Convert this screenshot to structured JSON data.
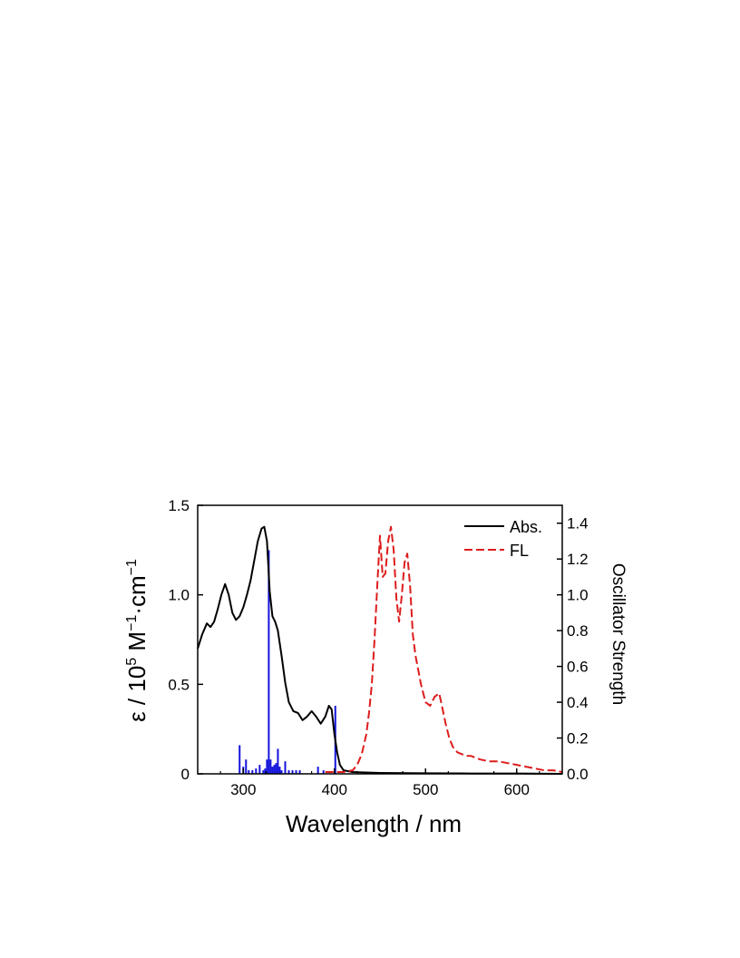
{
  "chart_data": {
    "type": "line",
    "xlabel": "Wavelength / nm",
    "ylabel_left": {
      "prefix": "ε / 10",
      "sup1": "5",
      "mid1": " M",
      "sup2": "−1",
      "mid2": "·cm",
      "sup3": "−1"
    },
    "ylabel_right": "Oscillator Strength",
    "xlim": [
      250,
      650
    ],
    "ylim_left": [
      0,
      1.5
    ],
    "ylim_right": [
      0,
      1.5
    ],
    "x_ticks": [
      300,
      400,
      500,
      600
    ],
    "x_tick_labels": [
      "300",
      "400",
      "500",
      "600"
    ],
    "y_left_ticks": [
      0,
      0.5,
      1.0,
      1.5
    ],
    "y_left_tick_labels": [
      "0",
      "0.5",
      "1.0",
      "1.5"
    ],
    "y_right_ticks": [
      0,
      0.2,
      0.4,
      0.6,
      0.8,
      1.0,
      1.2,
      1.4
    ],
    "y_right_tick_labels": [
      "0.0",
      "0.2",
      "0.4",
      "0.6",
      "0.8",
      "1.0",
      "1.2",
      "1.4"
    ],
    "legend": {
      "position": "top-right",
      "entries": [
        {
          "label": "Abs.",
          "color": "#000000",
          "dash": "solid"
        },
        {
          "label": "FL",
          "color": "#dd1c1c",
          "dash": "dashed"
        }
      ]
    },
    "grid": false,
    "series": [
      {
        "name": "Abs.",
        "axis": "left",
        "color": "#000000",
        "dash": "solid",
        "x": [
          250,
          255,
          260,
          264,
          268,
          272,
          276,
          280,
          284,
          288,
          292,
          296,
          300,
          304,
          308,
          312,
          316,
          320,
          323,
          326,
          329,
          332,
          335,
          338,
          342,
          346,
          350,
          355,
          360,
          365,
          370,
          375,
          380,
          385,
          390,
          394,
          397,
          400,
          403,
          406,
          410,
          420,
          430,
          450,
          500,
          550,
          600,
          650
        ],
        "y": [
          0.7,
          0.78,
          0.84,
          0.82,
          0.85,
          0.92,
          1.0,
          1.06,
          1.0,
          0.9,
          0.86,
          0.88,
          0.93,
          1.0,
          1.08,
          1.19,
          1.3,
          1.37,
          1.38,
          1.3,
          1.02,
          0.88,
          0.85,
          0.8,
          0.66,
          0.51,
          0.4,
          0.35,
          0.34,
          0.3,
          0.32,
          0.35,
          0.32,
          0.28,
          0.32,
          0.38,
          0.36,
          0.22,
          0.12,
          0.05,
          0.02,
          0.01,
          0.008,
          0.005,
          0.003,
          0.002,
          0.002,
          0.0
        ]
      },
      {
        "name": "FL",
        "axis": "left",
        "color": "#dd1c1c",
        "dash": "dashed",
        "x": [
          390,
          400,
          410,
          420,
          425,
          430,
          435,
          438,
          441,
          444,
          447,
          450,
          453,
          456,
          459,
          462,
          465,
          468,
          471,
          474,
          477,
          480,
          483,
          486,
          489,
          492,
          495,
          500,
          505,
          510,
          515,
          518,
          522,
          526,
          530,
          535,
          540,
          545,
          550,
          560,
          570,
          580,
          590,
          600,
          610,
          620,
          630,
          640,
          650
        ],
        "y": [
          0.01,
          0.01,
          0.01,
          0.02,
          0.05,
          0.11,
          0.22,
          0.34,
          0.5,
          0.75,
          1.05,
          1.33,
          1.1,
          1.12,
          1.3,
          1.38,
          1.25,
          0.98,
          0.85,
          1.0,
          1.18,
          1.23,
          1.05,
          0.78,
          0.66,
          0.58,
          0.5,
          0.4,
          0.38,
          0.43,
          0.45,
          0.38,
          0.28,
          0.2,
          0.15,
          0.12,
          0.11,
          0.1,
          0.1,
          0.08,
          0.07,
          0.07,
          0.06,
          0.05,
          0.04,
          0.03,
          0.02,
          0.02,
          0.01
        ]
      }
    ],
    "sticks": {
      "name": "Oscillator Strength",
      "axis": "right",
      "color": "#1414dc",
      "x": [
        296,
        300,
        303,
        306,
        310,
        314,
        318,
        322,
        324,
        326,
        328,
        330,
        332,
        334,
        336,
        338,
        340,
        342,
        346,
        350,
        354,
        358,
        362,
        382,
        388,
        401
      ],
      "y": [
        0.16,
        0.04,
        0.08,
        0.02,
        0.02,
        0.03,
        0.05,
        0.02,
        0.03,
        0.08,
        1.25,
        0.08,
        0.04,
        0.05,
        0.06,
        0.14,
        0.04,
        0.02,
        0.07,
        0.02,
        0.02,
        0.02,
        0.02,
        0.04,
        0.02,
        0.38
      ]
    }
  }
}
